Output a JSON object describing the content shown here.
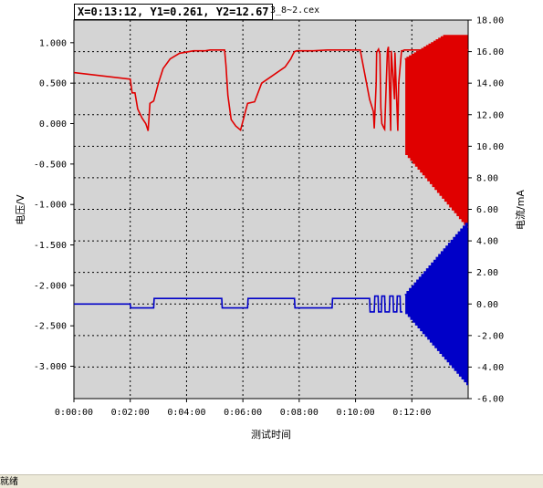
{
  "readout": {
    "text": "X=0:13:12, Y1=0.261, Y2=12.67"
  },
  "file_name": "3_8~2.cex",
  "status": {
    "text": "就绪"
  },
  "chart_data": {
    "type": "line",
    "xlabel": "测试时间",
    "ylabel_left": "电压/V",
    "ylabel_right": "电流/mA",
    "x_unit": "seconds",
    "x_range": [
      0,
      840
    ],
    "x_ticks": [
      "0:00:00",
      "0:02:00",
      "0:04:00",
      "0:06:00",
      "0:08:00",
      "0:10:00",
      "0:12:00"
    ],
    "x_tick_seconds": [
      0,
      120,
      240,
      360,
      480,
      600,
      720
    ],
    "y_left_range": [
      -3.4,
      1.28
    ],
    "y_left_ticks": [
      "1.000",
      "0.500",
      "0.000",
      "-0.500",
      "-1.000",
      "-1.500",
      "-2.000",
      "-2.500",
      "-3.000"
    ],
    "y_left_tick_values": [
      1.0,
      0.5,
      0.0,
      -0.5,
      -1.0,
      -1.5,
      -2.0,
      -2.5,
      -3.0
    ],
    "y_right_range": [
      -6.0,
      18.0
    ],
    "y_right_ticks": [
      "18.00",
      "16.00",
      "14.00",
      "12.00",
      "10.00",
      "8.00",
      "6.00",
      "4.00",
      "2.00",
      "0.00",
      "-2.00",
      "-4.00",
      "-6.00"
    ],
    "y_right_tick_values": [
      18,
      16,
      14,
      12,
      10,
      8,
      6,
      4,
      2,
      0,
      -2,
      -4,
      -6
    ],
    "grid": true,
    "series": [
      {
        "axis": "left",
        "color": "#e00000",
        "x": [
          0,
          118,
          120,
          124,
          130,
          136,
          145,
          153,
          156,
          158,
          162,
          170,
          180,
          190,
          205,
          225,
          255,
          258,
          262,
          270,
          280,
          290,
          300,
          315,
          321,
          324,
          328,
          335,
          345,
          355,
          370,
          385,
          400,
          450,
          462,
          467,
          470,
          475,
          485,
          495,
          510,
          540,
          556,
          562,
          567,
          572,
          580,
          590,
          600,
          610,
          630,
          638,
          640,
          644,
          645,
          649,
          652,
          654,
          656,
          661,
          662,
          668,
          670,
          675,
          676,
          683,
          684,
          690,
          692,
          698,
          700,
          704,
          705,
          710,
          713,
          717,
          719,
          723,
          725,
          729,
          731,
          735,
          737,
          741,
          743,
          747,
          749,
          753,
          755,
          759,
          761,
          765,
          767,
          771,
          773,
          777,
          779,
          783,
          785,
          789,
          791,
          795,
          797,
          801,
          803,
          807,
          809,
          813,
          815,
          819,
          821,
          825,
          827,
          831,
          833,
          837,
          840
        ],
        "y": [
          0.63,
          0.55,
          0.55,
          0.38,
          0.38,
          0.18,
          0.07,
          0.0,
          -0.05,
          -0.09,
          0.25,
          0.28,
          0.5,
          0.68,
          0.8,
          0.87,
          0.9,
          0.9,
          0.9,
          0.9,
          0.9,
          0.91,
          0.91,
          0.91,
          0.91,
          0.72,
          0.35,
          0.05,
          -0.03,
          -0.08,
          0.25,
          0.27,
          0.5,
          0.7,
          0.8,
          0.86,
          0.89,
          0.9,
          0.9,
          0.9,
          0.9,
          0.91,
          0.91,
          0.91,
          0.91,
          0.91,
          0.91,
          0.91,
          0.91,
          0.91,
          0.3,
          0.15,
          -0.06,
          0.5,
          0.88,
          0.92,
          0.86,
          0.2,
          0.0,
          -0.06,
          -0.07,
          0.9,
          0.95,
          -0.09,
          0.9,
          0.3,
          0.88,
          -0.09,
          0.5,
          0.9,
          0.9,
          0.91,
          0.91,
          0.91,
          0.91,
          0.91,
          0.91,
          0.91,
          0.91,
          0.91,
          0.91,
          0.91,
          0.91,
          0.91,
          0.91,
          0.91,
          0.91,
          0.91,
          0.91,
          0.91,
          0.91,
          0.91,
          0.91,
          0.91,
          0.91,
          0.91,
          0.91,
          0.91,
          0.91,
          0.91,
          0.91,
          0.91,
          0.91,
          0.91,
          0.91,
          0.91,
          0.91,
          0.91,
          0.91,
          0.91,
          0.91,
          0.91,
          0.91,
          0.91,
          0.91,
          0.91,
          0.91
        ]
      },
      {
        "axis": "right",
        "color": "#0000c8",
        "x": [
          0,
          120,
          121,
          170,
          171,
          315,
          316,
          370,
          371,
          470,
          471,
          550,
          551,
          630,
          631,
          640,
          641,
          648,
          649,
          655,
          656,
          662,
          663,
          672,
          673,
          680,
          681,
          688,
          689,
          695,
          696,
          700
        ],
        "y": [
          0.0,
          0.0,
          -0.25,
          -0.25,
          0.35,
          0.35,
          -0.25,
          -0.25,
          0.35,
          0.35,
          -0.25,
          -0.25,
          0.35,
          0.35,
          -0.5,
          -0.5,
          0.5,
          0.5,
          -0.5,
          -0.5,
          0.5,
          0.5,
          -0.5,
          -0.5,
          0.5,
          0.5,
          -0.5,
          -0.5,
          0.5,
          0.5,
          -0.5,
          -0.5
        ]
      }
    ]
  }
}
